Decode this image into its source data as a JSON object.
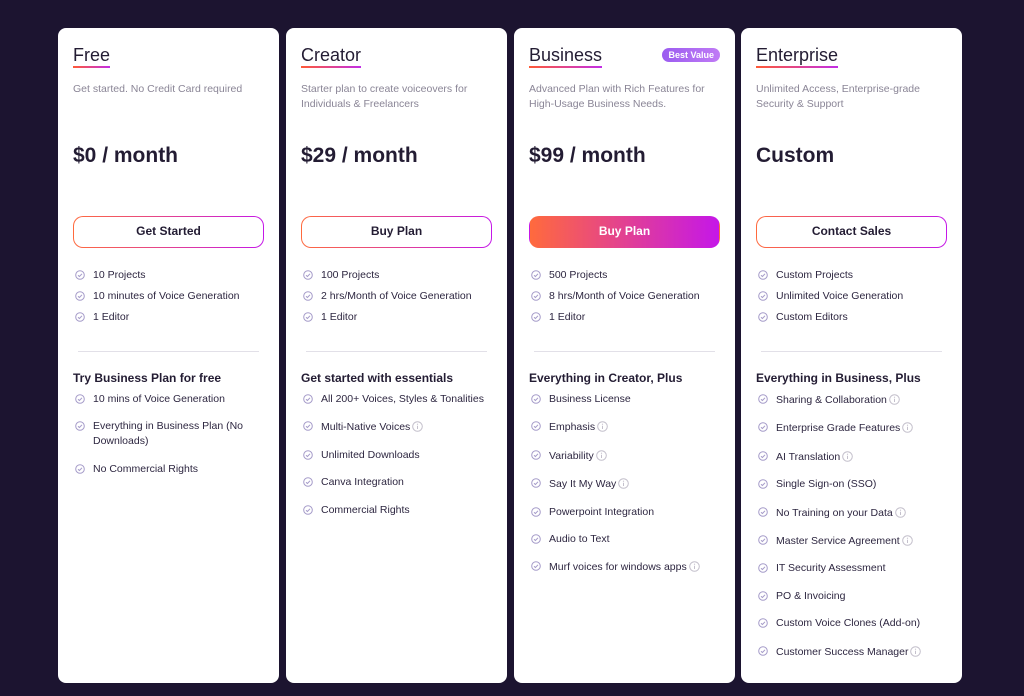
{
  "plans": [
    {
      "name": "Free",
      "description": "Get started. No Credit Card required",
      "price": "$0 / month",
      "button": "Get Started",
      "primary": false,
      "features": [
        "10 Projects",
        "10 minutes of Voice Generation",
        "1 Editor"
      ],
      "section_title": "Try Business Plan for free",
      "section_items": [
        {
          "text": "10 mins of Voice Generation",
          "info": false
        },
        {
          "text": "Everything in Business Plan (No Downloads)",
          "info": false
        },
        {
          "text": "No Commercial Rights",
          "info": false
        }
      ]
    },
    {
      "name": "Creator",
      "description": "Starter plan to create voiceovers for Individuals & Freelancers",
      "price": "$29 / month",
      "button": "Buy Plan",
      "primary": false,
      "features": [
        "100 Projects",
        "2 hrs/Month of Voice Generation",
        "1 Editor"
      ],
      "section_title": "Get started with essentials",
      "section_items": [
        {
          "text": "All 200+ Voices, Styles & Tonalities",
          "info": false
        },
        {
          "text": "Multi-Native Voices",
          "info": true
        },
        {
          "text": "Unlimited Downloads",
          "info": false
        },
        {
          "text": "Canva Integration",
          "info": false
        },
        {
          "text": "Commercial Rights",
          "info": false
        }
      ]
    },
    {
      "name": "Business",
      "badge": "Best Value",
      "description": "Advanced Plan with Rich Features for High-Usage Business Needs.",
      "price": "$99 / month",
      "button": "Buy Plan",
      "primary": true,
      "features": [
        "500 Projects",
        "8 hrs/Month of Voice Generation",
        "1 Editor"
      ],
      "section_title": "Everything in Creator, Plus",
      "section_items": [
        {
          "text": "Business License",
          "info": false
        },
        {
          "text": "Emphasis",
          "info": true
        },
        {
          "text": "Variability",
          "info": true
        },
        {
          "text": "Say It My Way",
          "info": true
        },
        {
          "text": "Powerpoint Integration",
          "info": false
        },
        {
          "text": "Audio to Text",
          "info": false
        },
        {
          "text": "Murf voices for windows apps",
          "info": true
        }
      ]
    },
    {
      "name": "Enterprise",
      "description": "Unlimited Access, Enterprise-grade Security & Support",
      "price": "Custom",
      "button": "Contact Sales",
      "primary": false,
      "features": [
        "Custom Projects",
        "Unlimited Voice Generation",
        "Custom Editors"
      ],
      "section_title": "Everything in Business, Plus",
      "section_items": [
        {
          "text": "Sharing & Collaboration",
          "info": true
        },
        {
          "text": "Enterprise Grade Features",
          "info": true
        },
        {
          "text": "AI Translation",
          "info": true
        },
        {
          "text": "Single Sign-on (SSO)",
          "info": false
        },
        {
          "text": "No Training on your Data",
          "info": true
        },
        {
          "text": "Master Service Agreement",
          "info": true
        },
        {
          "text": "IT Security Assessment",
          "info": false
        },
        {
          "text": "PO & Invoicing",
          "info": false
        },
        {
          "text": "Custom Voice Clones (Add-on)",
          "info": false
        },
        {
          "text": "Customer Success Manager",
          "info": true
        }
      ]
    }
  ]
}
